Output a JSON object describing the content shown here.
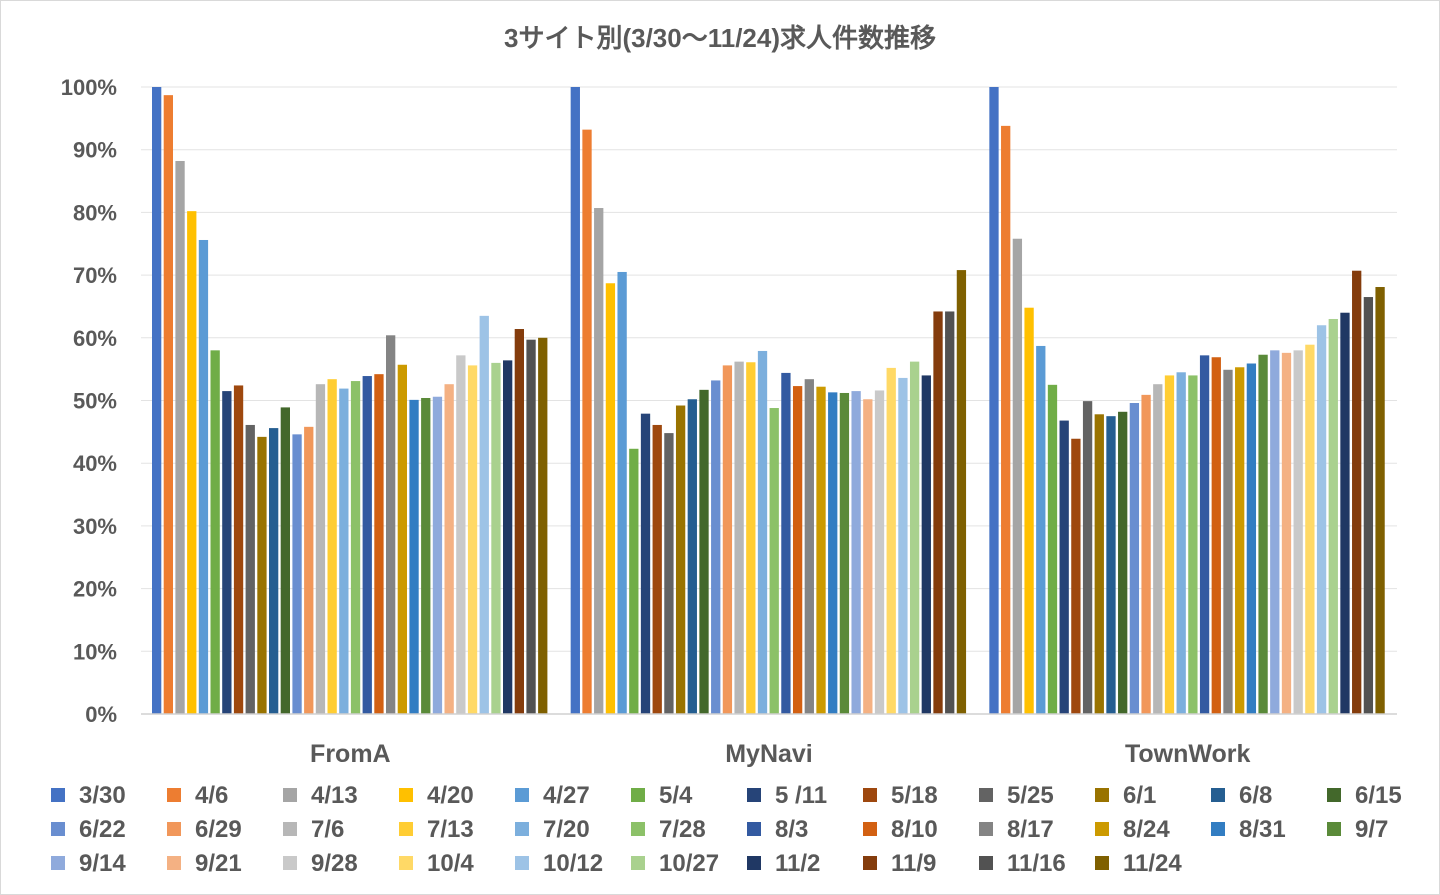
{
  "chart_data": {
    "type": "bar",
    "title": "3サイト別(3/30～11/24)求人件数推移",
    "xlabel": "",
    "ylabel": "",
    "ylim": [
      0,
      100
    ],
    "yticks": [
      "0%",
      "10%",
      "20%",
      "30%",
      "40%",
      "50%",
      "60%",
      "70%",
      "80%",
      "90%",
      "100%"
    ],
    "grid": true,
    "legend_position": "bottom",
    "categories": [
      "FromA",
      "MyNavi",
      "TownWork"
    ],
    "series": [
      {
        "name": "3/30",
        "color": "#4472C4",
        "values": [
          100,
          100,
          100
        ]
      },
      {
        "name": "4/6",
        "color": "#ED7D31",
        "values": [
          98.7,
          93.2,
          93.8
        ]
      },
      {
        "name": "4/13",
        "color": "#A5A5A5",
        "values": [
          88.2,
          80.7,
          75.8
        ]
      },
      {
        "name": "4/20",
        "color": "#FFC000",
        "values": [
          80.2,
          68.7,
          64.8
        ]
      },
      {
        "name": "4/27",
        "color": "#5B9BD5",
        "values": [
          75.6,
          70.5,
          58.7
        ]
      },
      {
        "name": "5/4",
        "color": "#70AD47",
        "values": [
          58.0,
          42.3,
          52.5
        ]
      },
      {
        "name": "5 /11",
        "color": "#264478",
        "values": [
          51.5,
          47.9,
          46.8
        ]
      },
      {
        "name": "5/18",
        "color": "#9E480E",
        "values": [
          52.4,
          46.1,
          43.9
        ]
      },
      {
        "name": "5/25",
        "color": "#636363",
        "values": [
          46.1,
          44.8,
          49.9
        ]
      },
      {
        "name": "6/1",
        "color": "#997300",
        "values": [
          44.2,
          49.2,
          47.8
        ]
      },
      {
        "name": "6/8",
        "color": "#255E91",
        "values": [
          45.6,
          50.2,
          47.5
        ]
      },
      {
        "name": "6/15",
        "color": "#43682B",
        "values": [
          48.9,
          51.7,
          48.2
        ]
      },
      {
        "name": "6/22",
        "color": "#698ED0",
        "values": [
          44.6,
          53.2,
          49.6
        ]
      },
      {
        "name": "6/29",
        "color": "#F1975A",
        "values": [
          45.8,
          55.6,
          50.9
        ]
      },
      {
        "name": "7/6",
        "color": "#B7B7B7",
        "values": [
          52.6,
          56.2,
          52.6
        ]
      },
      {
        "name": "7/13",
        "color": "#FFCD33",
        "values": [
          53.4,
          56.1,
          54.0
        ]
      },
      {
        "name": "7/20",
        "color": "#7CAFDD",
        "values": [
          51.9,
          57.9,
          54.5
        ]
      },
      {
        "name": "7/28",
        "color": "#8CC168",
        "values": [
          53.1,
          48.8,
          54.0
        ]
      },
      {
        "name": "8/3",
        "color": "#335AA1",
        "values": [
          53.9,
          54.4,
          57.2
        ]
      },
      {
        "name": "8/10",
        "color": "#D26012",
        "values": [
          54.2,
          52.3,
          56.9
        ]
      },
      {
        "name": "8/17",
        "color": "#848484",
        "values": [
          60.4,
          53.4,
          54.9
        ]
      },
      {
        "name": "8/24",
        "color": "#CC9A00",
        "values": [
          55.7,
          52.2,
          55.3
        ]
      },
      {
        "name": "8/31",
        "color": "#327DC2",
        "values": [
          50.1,
          51.3,
          55.9
        ]
      },
      {
        "name": "9/7",
        "color": "#5A8A39",
        "values": [
          50.4,
          51.2,
          57.3
        ]
      },
      {
        "name": "9/14",
        "color": "#8FAADC",
        "values": [
          50.6,
          51.5,
          58.0
        ]
      },
      {
        "name": "9/21",
        "color": "#F4B183",
        "values": [
          52.6,
          50.2,
          57.6
        ]
      },
      {
        "name": "9/28",
        "color": "#C9C9C9",
        "values": [
          57.2,
          51.6,
          58.0
        ]
      },
      {
        "name": "10/4",
        "color": "#FFD966",
        "values": [
          55.6,
          55.2,
          58.9
        ]
      },
      {
        "name": "10/12",
        "color": "#9DC3E6",
        "values": [
          63.5,
          53.6,
          62.0
        ]
      },
      {
        "name": "10/27",
        "color": "#A9D18E",
        "values": [
          56.0,
          56.2,
          63.0
        ]
      },
      {
        "name": "11/2",
        "color": "#203864",
        "values": [
          56.4,
          54.0,
          64.0
        ]
      },
      {
        "name": "11/9",
        "color": "#843C0C",
        "values": [
          61.4,
          64.2,
          70.7
        ]
      },
      {
        "name": "11/16",
        "color": "#525252",
        "values": [
          59.7,
          64.2,
          66.5
        ]
      },
      {
        "name": "11/24",
        "color": "#7F6000",
        "values": [
          60.0,
          70.8,
          68.1
        ]
      }
    ]
  }
}
